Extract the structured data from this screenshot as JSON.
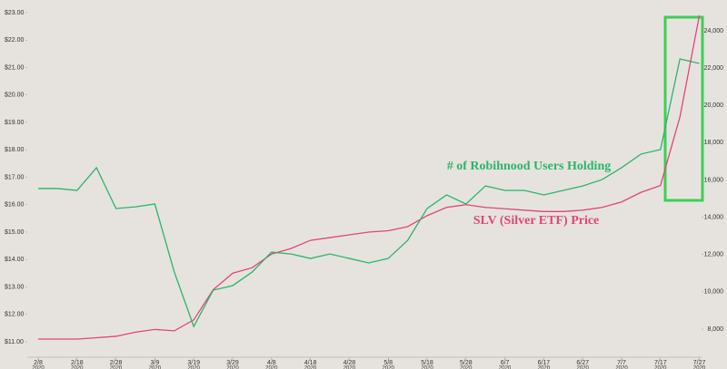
{
  "chart_data": {
    "type": "line",
    "annotations": [
      "# of Robihnood Users Holding",
      "SLV (Silver ETF) Price"
    ],
    "categories": [
      "2/8",
      null,
      "2/18",
      null,
      "2/28",
      null,
      "3/9",
      null,
      "3/19",
      null,
      "3/29",
      null,
      "4/8",
      null,
      "4/18",
      null,
      "4/28",
      null,
      "5/8",
      null,
      "5/18",
      null,
      "5/28",
      null,
      "6/7",
      null,
      "6/17",
      null,
      "6/27",
      null,
      "7/7",
      null,
      "7/17",
      null,
      "7/27"
    ],
    "category_year": "2020",
    "series": [
      {
        "name": "SLV (Silver ETF) Price",
        "color": "#e0457b",
        "axis": "y",
        "values": [
          11.1,
          11.1,
          11.1,
          11.15,
          11.2,
          11.35,
          11.45,
          11.4,
          11.8,
          12.9,
          13.5,
          13.7,
          14.2,
          14.4,
          14.7,
          14.8,
          14.9,
          15.0,
          15.05,
          15.2,
          15.6,
          15.9,
          16.0,
          15.9,
          15.85,
          15.8,
          15.75,
          15.75,
          15.8,
          15.9,
          16.1,
          16.45,
          16.7,
          19.2,
          22.9
        ]
      },
      {
        "name": "# of Robihnood Users Holding",
        "color": "#2db36b",
        "axis": "y2",
        "values": [
          15540,
          15540,
          15440,
          16660,
          14470,
          14560,
          14710,
          11060,
          8140,
          10090,
          10330,
          11060,
          12130,
          12030,
          11790,
          12030,
          11790,
          11550,
          11790,
          12760,
          14470,
          15200,
          14710,
          15680,
          15440,
          15440,
          15200,
          15440,
          15680,
          16020,
          16660,
          17390,
          17630,
          22490,
          22250
        ]
      }
    ],
    "ylim": [
      11,
      23
    ],
    "yticks": [
      {
        "value": 11,
        "label": "$11.00"
      },
      {
        "value": 12,
        "label": "$12.00"
      },
      {
        "value": 13,
        "label": "$13.00"
      },
      {
        "value": 14,
        "label": "$14.00"
      },
      {
        "value": 15,
        "label": "$15.00"
      },
      {
        "value": 16,
        "label": "$16.00"
      },
      {
        "value": 17,
        "label": "$17.00"
      },
      {
        "value": 18,
        "label": "$18.00"
      },
      {
        "value": 19,
        "label": "$19.00"
      },
      {
        "value": 20,
        "label": "$20.00"
      },
      {
        "value": 21,
        "label": "$21.00"
      },
      {
        "value": 22,
        "label": "$22.00"
      },
      {
        "value": 23,
        "label": "$23.00"
      }
    ],
    "y2lim": [
      8000,
      24000
    ],
    "y2ticks": [
      {
        "value": 8000,
        "label": "8,000"
      },
      {
        "value": 10000,
        "label": "10,000"
      },
      {
        "value": 12000,
        "label": "12,000"
      },
      {
        "value": 14000,
        "label": "14,000"
      },
      {
        "value": 16000,
        "label": "16,000"
      },
      {
        "value": 18000,
        "label": "18,000"
      },
      {
        "value": 20000,
        "label": "20,000"
      },
      {
        "value": 22000,
        "label": "22,000"
      },
      {
        "value": 24000,
        "label": "24,000"
      }
    ],
    "grid": false
  }
}
